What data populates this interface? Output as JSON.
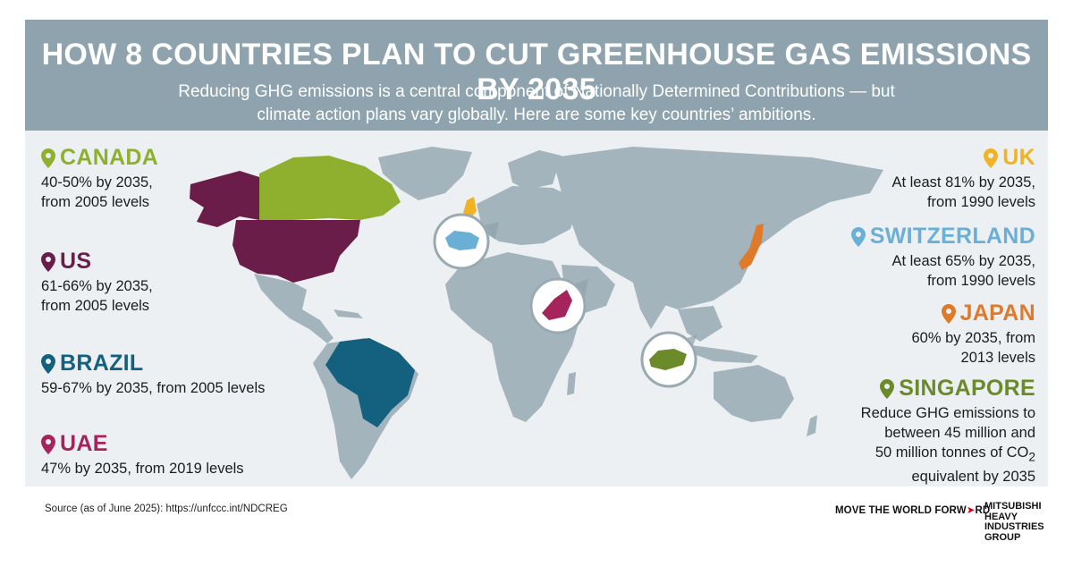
{
  "header": {
    "title": "HOW 8 COUNTRIES PLAN TO CUT GREENHOUSE GAS EMISSIONS BY 2035",
    "subtitle_line1": "Reducing GHG emissions is a central component of Nationally Determined Contributions — but",
    "subtitle_line2": "climate action plans vary globally. Here are some key countries’ ambitions."
  },
  "countries_left": [
    {
      "name": "CANADA",
      "line1": "40-50% by 2035,",
      "line2": "from 2005 levels",
      "color": "#8fb02e"
    },
    {
      "name": "US",
      "line1": "61-66% by 2035,",
      "line2": "from 2005 levels",
      "color": "#6b1d4a"
    },
    {
      "name": "BRAZIL",
      "line1": "59-67% by 2035, from 2005 levels",
      "line2": "",
      "color": "#14607f"
    },
    {
      "name": "UAE",
      "line1": "47% by 2035, from 2019 levels",
      "line2": "",
      "color": "#a6245c"
    }
  ],
  "countries_right": [
    {
      "name": "UK",
      "line1": "At least 81% by 2035,",
      "line2": "from 1990 levels",
      "color": "#f0b323"
    },
    {
      "name": "SWITZERLAND",
      "line1": "At least 65% by 2035,",
      "line2": "from 1990 levels",
      "color": "#6aafd6"
    },
    {
      "name": "JAPAN",
      "line1": "60% by 2035, from",
      "line2": "2013 levels",
      "color": "#e07a2b"
    },
    {
      "name": "SINGAPORE",
      "line1": "Reduce GHG emissions to",
      "line2": "between 45 million and",
      "line3": "50 million tonnes of CO",
      "sub": "2",
      "line4": "equivalent by 2035",
      "color": "#6b8a2a"
    }
  ],
  "footer": {
    "source": "Source (as of June 2025): https://unfccc.int/NDCREG",
    "slogan_a": "MOVE THE WORLD FORW",
    "slogan_arrow": "➤",
    "slogan_b": "RD",
    "brand_1": "MITSUBISHI",
    "brand_2": "HEAVY",
    "brand_3": "INDUSTRIES",
    "brand_4": "GROUP"
  },
  "colors": {
    "header_bg": "#8ea3ad",
    "map_bg": "#edf0f2",
    "land": "#a3b4bd"
  }
}
